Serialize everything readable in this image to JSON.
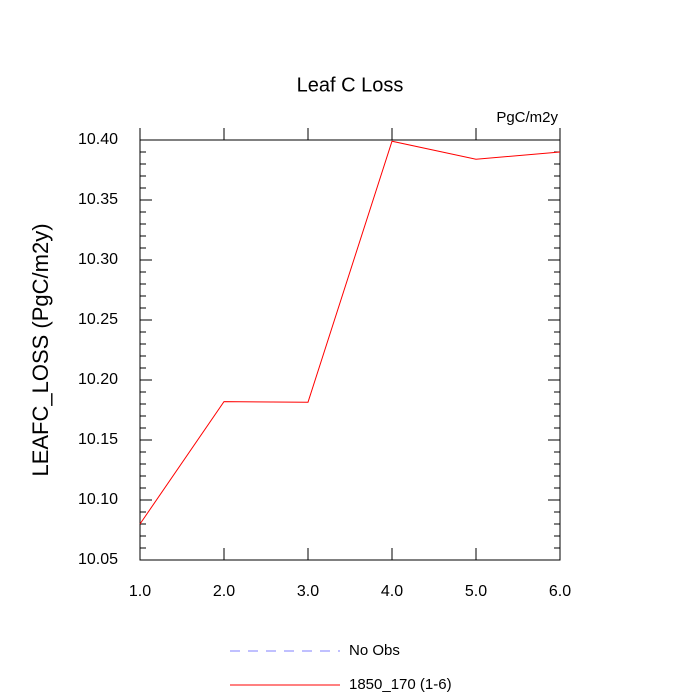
{
  "chart_data": {
    "type": "line",
    "title": "Leaf C Loss",
    "units": "PgC/m2y",
    "y_label": "LEAFC_LOSS  (PgC/m2y)",
    "x": [
      1,
      2,
      3,
      4,
      5,
      6
    ],
    "series": [
      {
        "name": "No Obs",
        "color": "#8080ff",
        "dashed": true,
        "values": [
          null,
          null,
          null,
          null,
          null,
          null
        ]
      },
      {
        "name": "1850_170 (1-6)",
        "color": "#ff0000",
        "dashed": false,
        "values": [
          10.08,
          10.182,
          10.1815,
          10.399,
          10.384,
          10.39
        ]
      }
    ],
    "xlim": [
      1,
      6
    ],
    "xticks": [
      {
        "value": 1,
        "label": "1.0"
      },
      {
        "value": 2,
        "label": "2.0"
      },
      {
        "value": 3,
        "label": "3.0"
      },
      {
        "value": 4,
        "label": "4.0"
      },
      {
        "value": 5,
        "label": "5.0"
      },
      {
        "value": 6,
        "label": "6.0"
      }
    ],
    "ylim": [
      10.05,
      10.4
    ],
    "yticks": [
      10.05,
      {
        "value": 10.1,
        "label": "10.10"
      },
      10.15,
      {
        "value": 10.2,
        "label": "10.20"
      },
      10.25,
      {
        "value": 10.3,
        "label": "10.30"
      },
      10.35,
      {
        "value": 10.4,
        "label": "10.40"
      }
    ]
  }
}
